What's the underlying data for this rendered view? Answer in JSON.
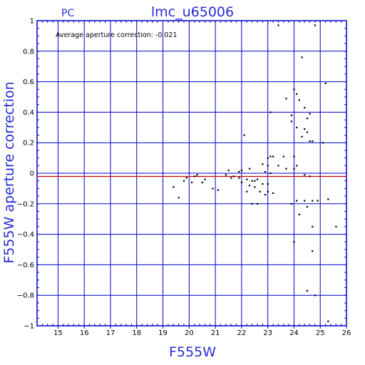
{
  "header": {
    "corner_label": "PC",
    "title": "lmc_u65006"
  },
  "annotation": "Average aperture correction:  -0.021",
  "colors": {
    "axes": "#0000cc",
    "labels": "#2b2bd6",
    "reference_line": "#cc0000",
    "points": "#000000"
  },
  "chart_data": {
    "type": "scatter",
    "title": "lmc_u65006",
    "xlabel": "F555W",
    "ylabel": "F555W aperture correction",
    "xlim": [
      14.2,
      26
    ],
    "ylim": [
      -1,
      1
    ],
    "xticks": [
      15,
      16,
      17,
      18,
      19,
      20,
      21,
      22,
      23,
      24,
      25,
      26
    ],
    "yticks": [
      -1,
      -0.8,
      -0.6,
      -0.4,
      -0.2,
      0,
      0.2,
      0.4,
      0.6,
      0.8,
      1
    ],
    "ytick_labels": [
      "−1",
      "−0.8",
      "−0.6",
      "−0.4",
      "−0.2",
      "0",
      "0.2",
      "0.4",
      "0.6",
      "0.8",
      "1"
    ],
    "grid": true,
    "reference_line": -0.021,
    "points": [
      [
        23.4,
        0.97
      ],
      [
        24.8,
        0.97
      ],
      [
        25.2,
        0.59
      ],
      [
        24.0,
        0.55
      ],
      [
        24.1,
        0.52
      ],
      [
        24.2,
        0.48
      ],
      [
        24.3,
        0.76
      ],
      [
        23.7,
        0.49
      ],
      [
        24.4,
        0.43
      ],
      [
        24.5,
        0.36
      ],
      [
        24.6,
        0.39
      ],
      [
        23.9,
        0.34
      ],
      [
        24.1,
        0.3
      ],
      [
        23.9,
        0.38
      ],
      [
        24.4,
        0.29
      ],
      [
        24.5,
        0.27
      ],
      [
        24.6,
        0.21
      ],
      [
        24.7,
        0.21
      ],
      [
        24.3,
        0.24
      ],
      [
        25.1,
        0.2
      ],
      [
        23.1,
        0.4
      ],
      [
        23.2,
        0.11
      ],
      [
        23.1,
        0.11
      ],
      [
        23.6,
        0.11
      ],
      [
        24.0,
        0.11
      ],
      [
        23.0,
        0.1
      ],
      [
        22.1,
        0.25
      ],
      [
        23.4,
        0.05
      ],
      [
        24.0,
        0.03
      ],
      [
        24.1,
        0.05
      ],
      [
        23.7,
        0.03
      ],
      [
        22.3,
        0.03
      ],
      [
        21.5,
        0.02
      ],
      [
        22.0,
        0.02
      ],
      [
        21.9,
        0.01
      ],
      [
        22.8,
        0.06
      ],
      [
        23.0,
        0.05
      ],
      [
        22.9,
        0.01
      ],
      [
        23.1,
        0.0
      ],
      [
        21.4,
        -0.01
      ],
      [
        21.6,
        -0.03
      ],
      [
        21.7,
        -0.02
      ],
      [
        21.9,
        -0.03
      ],
      [
        22.2,
        -0.04
      ],
      [
        22.4,
        -0.05
      ],
      [
        22.5,
        -0.05
      ],
      [
        22.6,
        -0.04
      ],
      [
        22.0,
        -0.06
      ],
      [
        22.3,
        -0.08
      ],
      [
        22.5,
        -0.09
      ],
      [
        22.8,
        -0.07
      ],
      [
        23.0,
        -0.07
      ],
      [
        22.2,
        -0.12
      ],
      [
        22.7,
        -0.12
      ],
      [
        23.0,
        -0.12
      ],
      [
        23.2,
        -0.13
      ],
      [
        22.9,
        -0.14
      ],
      [
        20.2,
        -0.02
      ],
      [
        20.3,
        -0.01
      ],
      [
        20.6,
        -0.04
      ],
      [
        19.9,
        -0.03
      ],
      [
        19.8,
        -0.05
      ],
      [
        20.1,
        -0.06
      ],
      [
        20.5,
        -0.06
      ],
      [
        19.6,
        -0.16
      ],
      [
        19.4,
        -0.09
      ],
      [
        20.9,
        -0.1
      ],
      [
        21.1,
        -0.11
      ],
      [
        24.4,
        -0.18
      ],
      [
        24.5,
        -0.22
      ],
      [
        24.1,
        -0.18
      ],
      [
        23.9,
        -0.2
      ],
      [
        24.2,
        -0.27
      ],
      [
        24.7,
        -0.18
      ],
      [
        24.9,
        -0.18
      ],
      [
        25.3,
        -0.17
      ],
      [
        24.0,
        -0.45
      ],
      [
        24.7,
        -0.35
      ],
      [
        24.7,
        -0.51
      ],
      [
        25.6,
        -0.35
      ],
      [
        24.5,
        -0.77
      ],
      [
        24.8,
        -0.8
      ],
      [
        25.3,
        -0.97
      ],
      [
        22.4,
        -0.2
      ],
      [
        22.6,
        -0.2
      ],
      [
        24.4,
        -0.01
      ],
      [
        24.6,
        -0.02
      ]
    ]
  }
}
